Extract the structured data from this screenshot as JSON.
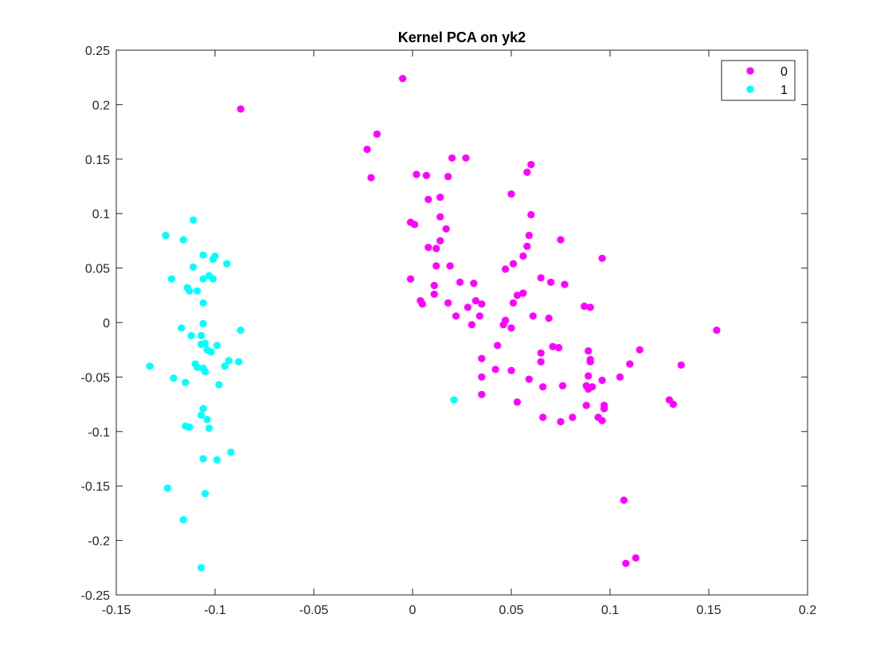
{
  "chart_data": {
    "type": "scatter",
    "title": "Kernel PCA on yk2",
    "xlabel": "",
    "ylabel": "",
    "xlim": [
      -0.15,
      0.2
    ],
    "ylim": [
      -0.25,
      0.25
    ],
    "xticks": [
      -0.15,
      -0.1,
      -0.05,
      0,
      0.05,
      0.1,
      0.15,
      0.2
    ],
    "xtick_labels": [
      "-0.15",
      "-0.1",
      "-0.05",
      "0",
      "0.05",
      "0.1",
      "0.15",
      "0.2"
    ],
    "yticks": [
      -0.25,
      -0.2,
      -0.15,
      -0.1,
      -0.05,
      0,
      0.05,
      0.1,
      0.15,
      0.2,
      0.25
    ],
    "ytick_labels": [
      "-0.25",
      "-0.2",
      "-0.15",
      "-0.1",
      "-0.05",
      "0",
      "0.05",
      "0.1",
      "0.15",
      "0.2",
      "0.25"
    ],
    "grid": false,
    "legend": "top-right",
    "series": [
      {
        "name": "0",
        "color": "#ff00ff",
        "points": [
          [
            -0.087,
            0.196
          ],
          [
            -0.005,
            0.224
          ],
          [
            -0.023,
            0.159
          ],
          [
            -0.018,
            0.173
          ],
          [
            -0.021,
            0.133
          ],
          [
            0.002,
            0.136
          ],
          [
            0.007,
            0.135
          ],
          [
            0.018,
            0.134
          ],
          [
            0.02,
            0.151
          ],
          [
            0.027,
            0.151
          ],
          [
            0.058,
            0.138
          ],
          [
            0.06,
            0.145
          ],
          [
            0.008,
            0.113
          ],
          [
            0.014,
            0.115
          ],
          [
            0.05,
            0.118
          ],
          [
            -0.001,
            0.092
          ],
          [
            0.001,
            0.09
          ],
          [
            0.014,
            0.097
          ],
          [
            0.06,
            0.099
          ],
          [
            0.017,
            0.086
          ],
          [
            0.014,
            0.075
          ],
          [
            0.008,
            0.069
          ],
          [
            0.012,
            0.068
          ],
          [
            0.059,
            0.08
          ],
          [
            0.058,
            0.07
          ],
          [
            0.075,
            0.076
          ],
          [
            0.056,
            0.061
          ],
          [
            0.051,
            0.054
          ],
          [
            0.047,
            0.049
          ],
          [
            0.012,
            0.052
          ],
          [
            0.019,
            0.052
          ],
          [
            0.096,
            0.059
          ],
          [
            -0.001,
            0.04
          ],
          [
            0.011,
            0.034
          ],
          [
            0.024,
            0.037
          ],
          [
            0.031,
            0.036
          ],
          [
            0.065,
            0.041
          ],
          [
            0.07,
            0.037
          ],
          [
            0.077,
            0.035
          ],
          [
            0.011,
            0.026
          ],
          [
            0.004,
            0.02
          ],
          [
            0.005,
            0.017
          ],
          [
            0.018,
            0.018
          ],
          [
            0.028,
            0.014
          ],
          [
            0.032,
            0.02
          ],
          [
            0.035,
            0.017
          ],
          [
            0.053,
            0.025
          ],
          [
            0.056,
            0.027
          ],
          [
            0.051,
            0.018
          ],
          [
            0.022,
            0.006
          ],
          [
            0.034,
            0.006
          ],
          [
            0.03,
            -0.002
          ],
          [
            0.047,
            0.002
          ],
          [
            0.046,
            -0.002
          ],
          [
            0.05,
            -0.005
          ],
          [
            0.061,
            0.006
          ],
          [
            0.069,
            0.004
          ],
          [
            0.087,
            0.015
          ],
          [
            0.09,
            0.014
          ],
          [
            0.154,
            -0.007
          ],
          [
            0.043,
            -0.021
          ],
          [
            0.035,
            -0.033
          ],
          [
            0.065,
            -0.028
          ],
          [
            0.071,
            -0.022
          ],
          [
            0.074,
            -0.023
          ],
          [
            0.089,
            -0.026
          ],
          [
            0.09,
            -0.036
          ],
          [
            0.09,
            -0.034
          ],
          [
            0.115,
            -0.025
          ],
          [
            0.065,
            -0.036
          ],
          [
            0.11,
            -0.038
          ],
          [
            0.136,
            -0.039
          ],
          [
            0.042,
            -0.043
          ],
          [
            0.05,
            -0.044
          ],
          [
            0.035,
            -0.05
          ],
          [
            0.059,
            -0.052
          ],
          [
            0.089,
            -0.049
          ],
          [
            0.096,
            -0.053
          ],
          [
            0.105,
            -0.05
          ],
          [
            0.035,
            -0.066
          ],
          [
            0.066,
            -0.059
          ],
          [
            0.076,
            -0.058
          ],
          [
            0.088,
            -0.058
          ],
          [
            0.091,
            -0.059
          ],
          [
            0.089,
            -0.061
          ],
          [
            0.053,
            -0.073
          ],
          [
            0.088,
            -0.076
          ],
          [
            0.097,
            -0.076
          ],
          [
            0.097,
            -0.079
          ],
          [
            0.13,
            -0.071
          ],
          [
            0.132,
            -0.075
          ],
          [
            0.066,
            -0.087
          ],
          [
            0.075,
            -0.091
          ],
          [
            0.081,
            -0.087
          ],
          [
            0.094,
            -0.087
          ],
          [
            0.096,
            -0.09
          ],
          [
            0.107,
            -0.163
          ],
          [
            0.108,
            -0.221
          ],
          [
            0.113,
            -0.216
          ]
        ]
      },
      {
        "name": "1",
        "color": "#00ffff",
        "points": [
          [
            -0.111,
            0.094
          ],
          [
            -0.125,
            0.08
          ],
          [
            -0.116,
            0.076
          ],
          [
            -0.106,
            0.062
          ],
          [
            -0.1,
            0.061
          ],
          [
            -0.101,
            0.058
          ],
          [
            -0.094,
            0.054
          ],
          [
            -0.111,
            0.051
          ],
          [
            -0.106,
            0.04
          ],
          [
            -0.103,
            0.043
          ],
          [
            -0.101,
            0.04
          ],
          [
            -0.122,
            0.04
          ],
          [
            -0.114,
            0.032
          ],
          [
            -0.113,
            0.029
          ],
          [
            -0.109,
            0.029
          ],
          [
            -0.106,
            0.018
          ],
          [
            -0.106,
            -0.001
          ],
          [
            -0.117,
            -0.005
          ],
          [
            -0.087,
            -0.007
          ],
          [
            -0.112,
            -0.012
          ],
          [
            -0.107,
            -0.012
          ],
          [
            -0.107,
            -0.02
          ],
          [
            -0.105,
            -0.019
          ],
          [
            -0.099,
            -0.021
          ],
          [
            -0.104,
            -0.025
          ],
          [
            -0.102,
            -0.027
          ],
          [
            -0.093,
            -0.035
          ],
          [
            -0.088,
            -0.036
          ],
          [
            -0.095,
            -0.04
          ],
          [
            -0.11,
            -0.038
          ],
          [
            -0.109,
            -0.041
          ],
          [
            -0.106,
            -0.042
          ],
          [
            -0.105,
            -0.045
          ],
          [
            -0.133,
            -0.04
          ],
          [
            -0.121,
            -0.051
          ],
          [
            -0.115,
            -0.055
          ],
          [
            -0.098,
            -0.057
          ],
          [
            0.021,
            -0.071
          ],
          [
            -0.106,
            -0.079
          ],
          [
            -0.107,
            -0.085
          ],
          [
            -0.104,
            -0.089
          ],
          [
            -0.115,
            -0.095
          ],
          [
            -0.113,
            -0.096
          ],
          [
            -0.103,
            -0.097
          ],
          [
            -0.092,
            -0.119
          ],
          [
            -0.106,
            -0.125
          ],
          [
            -0.099,
            -0.126
          ],
          [
            -0.124,
            -0.152
          ],
          [
            -0.105,
            -0.157
          ],
          [
            -0.116,
            -0.181
          ],
          [
            -0.107,
            -0.225
          ]
        ]
      }
    ]
  }
}
